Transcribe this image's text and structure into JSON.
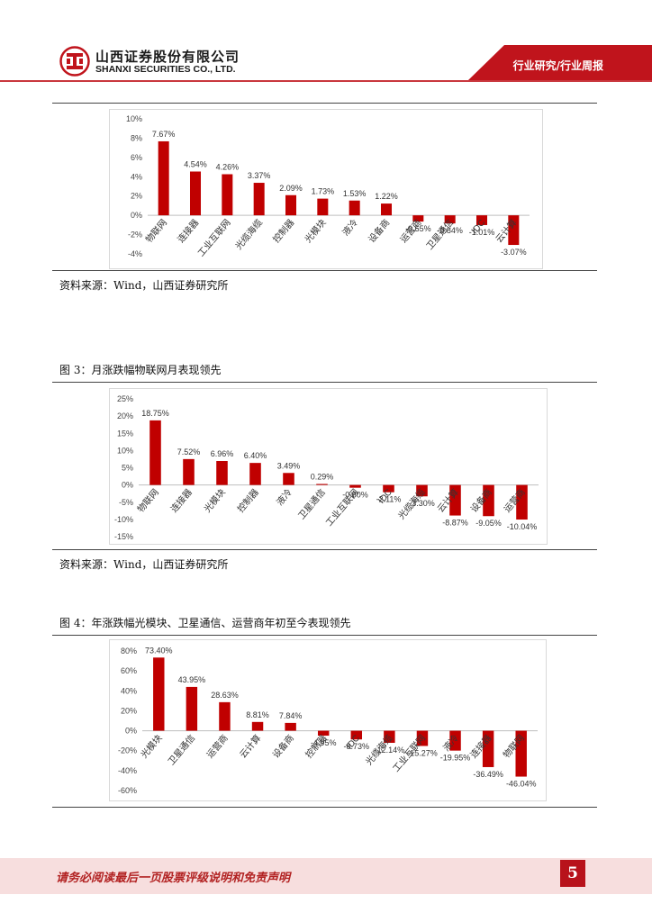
{
  "header": {
    "company_cn": "山西证券股份有限公司",
    "company_en": "SHANXI SECURITIES CO., LTD.",
    "report_type": "行业研究/行业周报",
    "colors": {
      "brand_red": "#c0141c",
      "band_pink": "#f4c9c9"
    }
  },
  "sources": {
    "source1": "资料来源：Wind，山西证券研究所",
    "source2": "资料来源：Wind，山西证券研究所"
  },
  "figures": {
    "fig3_title": "图 3：月涨跌幅物联网月表现领先",
    "fig4_title": "图 4：年涨跌幅光模块、卫星通信、运营商年初至今表现领先"
  },
  "footer": {
    "disclaimer": "请务必阅读最后一页股票评级说明和免责声明",
    "page_number": "5"
  },
  "chart_data": [
    {
      "type": "bar",
      "categories": [
        "物联网",
        "连接器",
        "工业互联网",
        "光缆海缆",
        "控制器",
        "光模块",
        "液冷",
        "设备商",
        "运营商",
        "卫星通信",
        "IDC",
        "云计算"
      ],
      "values": [
        7.67,
        4.54,
        4.26,
        3.37,
        2.09,
        1.73,
        1.53,
        1.22,
        -0.65,
        -0.84,
        -1.01,
        -3.07
      ],
      "labels": [
        "7.67%",
        "4.54%",
        "4.26%",
        "3.37%",
        "2.09%",
        "1.73%",
        "1.53%",
        "1.22%",
        "-0.65%",
        "-0.84%",
        "-1.01%",
        "-3.07%"
      ],
      "yticks": [
        -4,
        -2,
        0,
        2,
        4,
        6,
        8,
        10
      ],
      "ytick_labels": [
        "-4%",
        "-2%",
        "0%",
        "2%",
        "4%",
        "6%",
        "8%",
        "10%"
      ],
      "ylim": [
        -4,
        10
      ],
      "color": "#c00000",
      "grid": false
    },
    {
      "type": "bar",
      "categories": [
        "物联网",
        "连接器",
        "光模块",
        "控制器",
        "液冷",
        "卫星通信",
        "工业互联网",
        "IDC",
        "光缆海缆",
        "云计算",
        "设备商",
        "运营商"
      ],
      "values": [
        18.75,
        7.52,
        6.96,
        6.4,
        3.49,
        0.29,
        -0.8,
        -2.11,
        -3.3,
        -8.87,
        -9.05,
        -10.04
      ],
      "labels": [
        "18.75%",
        "7.52%",
        "6.96%",
        "6.40%",
        "3.49%",
        "0.29%",
        "-0.80%",
        "-2.11%",
        "-3.30%",
        "-8.87%",
        "-9.05%",
        "-10.04%"
      ],
      "yticks": [
        -15,
        -10,
        -5,
        0,
        5,
        10,
        15,
        20,
        25
      ],
      "ytick_labels": [
        "-15%",
        "-10%",
        "-5%",
        "0%",
        "5%",
        "10%",
        "15%",
        "20%",
        "25%"
      ],
      "ylim": [
        -15,
        25
      ],
      "color": "#c00000",
      "grid": false
    },
    {
      "type": "bar",
      "categories": [
        "光模块",
        "卫星通信",
        "运营商",
        "云计算",
        "设备商",
        "控制器",
        "IDC",
        "光缆海缆",
        "工业互联网",
        "液冷",
        "连接器",
        "物联网"
      ],
      "values": [
        73.4,
        43.95,
        28.63,
        8.81,
        7.84,
        -4.95,
        -8.73,
        -12.14,
        -15.27,
        -19.95,
        -36.49,
        -46.04
      ],
      "labels": [
        "73.40%",
        "43.95%",
        "28.63%",
        "8.81%",
        "7.84%",
        "-4.95%",
        "-8.73%",
        "-12.14%",
        "-15.27%",
        "-19.95%",
        "-36.49%",
        "-46.04%"
      ],
      "yticks": [
        -60,
        -40,
        -20,
        0,
        20,
        40,
        60,
        80
      ],
      "ytick_labels": [
        "-60%",
        "-40%",
        "-20%",
        "0%",
        "20%",
        "40%",
        "60%",
        "80%"
      ],
      "ylim": [
        -60,
        80
      ],
      "color": "#c00000",
      "grid": false
    }
  ]
}
